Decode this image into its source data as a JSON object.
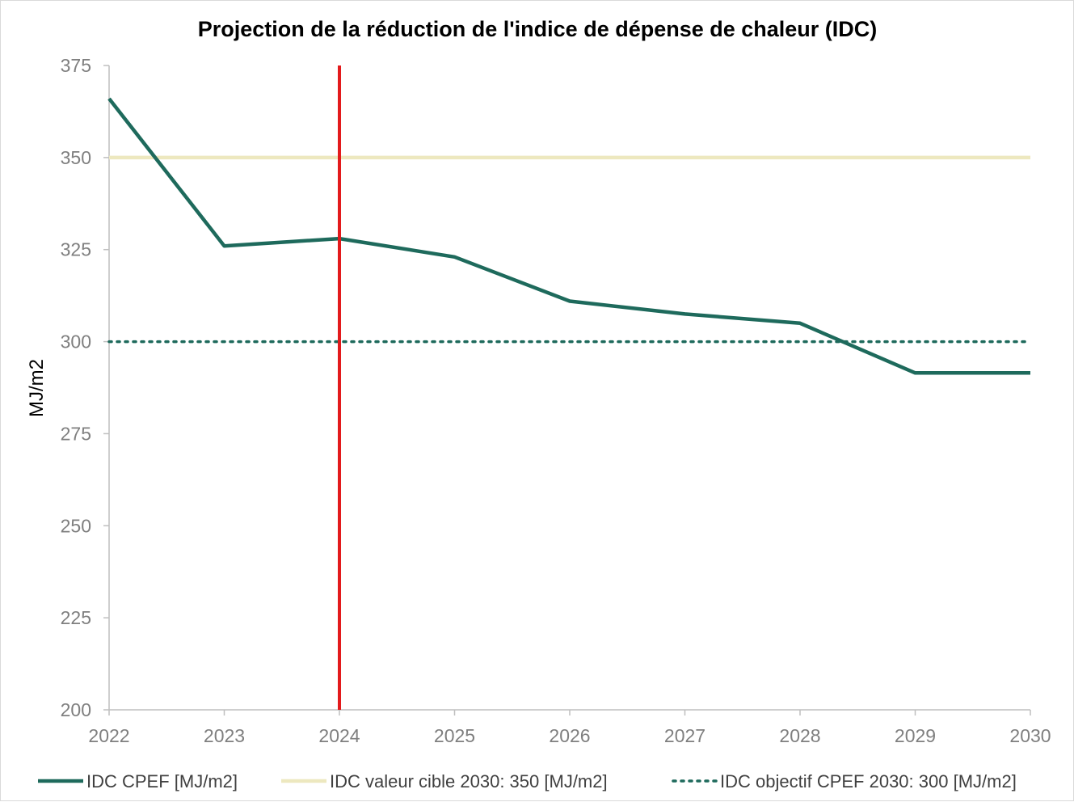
{
  "chart_data": {
    "type": "line",
    "title": "Projection de la réduction de l'indice de dépense de chaleur (IDC)",
    "xlabel": "",
    "ylabel": "MJ/m2",
    "x": [
      "2022",
      "2023",
      "2024",
      "2025",
      "2026",
      "2027",
      "2028",
      "2029",
      "2030"
    ],
    "ylim": [
      200,
      375
    ],
    "yticks": [
      200,
      225,
      250,
      275,
      300,
      325,
      350,
      375
    ],
    "grid": false,
    "legend_position": "bottom",
    "series": [
      {
        "name": "IDC CPEF [MJ/m2]",
        "values": [
          366,
          326,
          328,
          323,
          311,
          307.5,
          305,
          291.5,
          291.5
        ],
        "color": "#1e6a5c",
        "style": "solid"
      },
      {
        "name": "IDC valeur cible 2030: 350 [MJ/m2]",
        "values": [
          350,
          350,
          350,
          350,
          350,
          350,
          350,
          350,
          350
        ],
        "color": "#ede8bf",
        "style": "solid"
      },
      {
        "name": "IDC objectif CPEF 2030: 300 [MJ/m2]",
        "values": [
          300,
          300,
          300,
          300,
          300,
          300,
          300,
          300,
          300
        ],
        "color": "#1e6a5c",
        "style": "dotted"
      }
    ],
    "marker_line": {
      "x": "2024",
      "color": "#e31a1c"
    }
  }
}
